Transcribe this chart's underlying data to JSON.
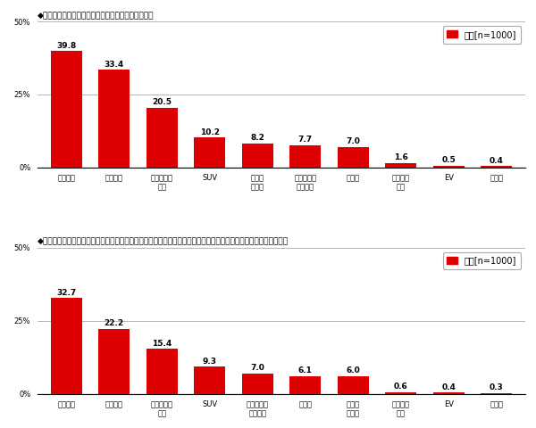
{
  "chart1": {
    "title": "◆家庭にあるクルマのボディタイプ［複数回答形式］",
    "categories": [
      "軽自動車",
      "ミニバン",
      "コンパクト\nカー",
      "SUV",
      "ハッチ\nバック",
      "ステーショ\nンワゴン",
      "セダン",
      "スポーツ\nカー",
      "EV",
      "その他"
    ],
    "values": [
      39.8,
      33.4,
      20.5,
      10.2,
      8.2,
      7.7,
      7.0,
      1.6,
      0.5,
      0.4
    ],
    "legend": "全体[n=1000]"
  },
  "chart2": {
    "title": "◆家庭にあるクルマの中で、家族で長距離ドライブに行く際に最もよく使うクルマのボディタイプ［単一回答形式］",
    "categories": [
      "ミニバン",
      "軽自動車",
      "コンパクト\nカー",
      "SUV",
      "ステーショ\nンワゴン",
      "セダン",
      "ハッチ\nバック",
      "スポーツ\nカー",
      "EV",
      "その他"
    ],
    "values": [
      32.7,
      22.2,
      15.4,
      9.3,
      7.0,
      6.1,
      6.0,
      0.6,
      0.4,
      0.3
    ],
    "legend": "全体[n=1000]"
  },
  "bar_color": "#dd0000",
  "legend_marker_color": "#dd0000",
  "title_fontsize": 6.5,
  "tick_fontsize": 6.0,
  "value_fontsize": 6.5,
  "legend_fontsize": 7.0,
  "ylim": [
    0,
    50
  ],
  "yticks": [
    0,
    25,
    50
  ],
  "yticklabels": [
    "0%",
    "25%",
    "50%"
  ],
  "bg_color": "#ffffff"
}
